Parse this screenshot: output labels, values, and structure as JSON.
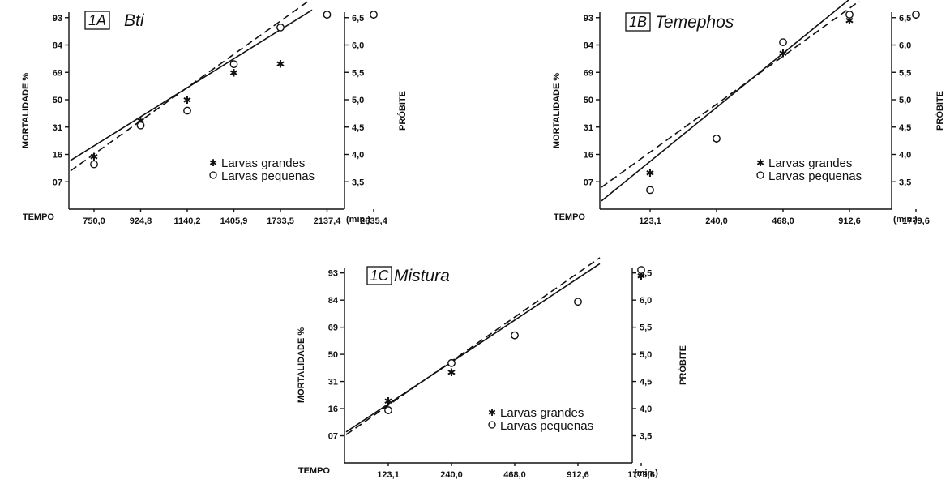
{
  "colors": {
    "ink": "#111111",
    "background": "#ffffff"
  },
  "chart_data": [
    {
      "type": "line",
      "panel": "1A",
      "title": "Bti",
      "xlabel": "TEMPO",
      "x_unit": "(min.)",
      "ylabel": "MORTALIDADE %",
      "ylabel_right": "PRÓBITE",
      "x_ticks": [
        "750,0",
        "924,8",
        "1140,2",
        "1405,9",
        "1733,5",
        "2137,4",
        "2635,4"
      ],
      "y_ticks": [
        "07",
        "16",
        "31",
        "50",
        "69",
        "84",
        "93"
      ],
      "probit_ticks": [
        "3,5",
        "4,0",
        "4,5",
        "5,0",
        "5,5",
        "6,0",
        "6,5"
      ],
      "probit_range": [
        3.0,
        6.6
      ],
      "series": [
        {
          "name": "Larvas grandes",
          "marker": "star",
          "line": "solid",
          "x": [
            "750,0",
            "924,8",
            "1140,2",
            "1405,9",
            "1733,5",
            "2137,4",
            "2635,4"
          ],
          "probit": [
            3.96,
            4.62,
            5.0,
            5.5,
            5.66,
            6.68,
            6.68
          ],
          "fit": [
            3.89,
            6.64
          ]
        },
        {
          "name": "Larvas pequenas",
          "marker": "circle",
          "line": "dashed",
          "x": [
            "750,0",
            "924,8",
            "1140,2",
            "1405,9",
            "1733,5",
            "2137,4",
            "2635,4"
          ],
          "probit": [
            3.82,
            4.53,
            4.8,
            5.65,
            6.32,
            6.68,
            6.68
          ],
          "fit": [
            3.7,
            6.85
          ]
        }
      ],
      "legend": {
        "placement": "lower-right",
        "entries": [
          "Larvas grandes",
          "Larvas pequenas"
        ]
      }
    },
    {
      "type": "line",
      "panel": "1B",
      "title": "Temephos",
      "xlabel": "TEMPO",
      "x_unit": "(min.)",
      "ylabel": "MORTALIDADE %",
      "ylabel_right": "PRÓBITE",
      "x_ticks": [
        "123,1",
        "240,0",
        "468,0",
        "912,6",
        "1779,6"
      ],
      "y_ticks": [
        "07",
        "16",
        "31",
        "50",
        "69",
        "84",
        "93"
      ],
      "probit_ticks": [
        "3,5",
        "4,0",
        "4,5",
        "5,0",
        "5,5",
        "6,0",
        "6,5"
      ],
      "probit_range": [
        3.0,
        6.6
      ],
      "series": [
        {
          "name": "Larvas grandes",
          "marker": "star",
          "line": "solid",
          "x": [
            "123,1",
            "240,0",
            "468,0",
            "912,6",
            "1779,6"
          ],
          "probit": [
            3.67,
            4.29,
            5.85,
            6.45,
            6.67
          ],
          "fit": [
            3.15,
            6.98
          ]
        },
        {
          "name": "Larvas pequenas",
          "marker": "circle",
          "line": "dashed",
          "x": [
            "123,1",
            "240,0",
            "468,0",
            "912,6",
            "1779,6"
          ],
          "probit": [
            3.35,
            4.29,
            6.05,
            6.6,
            6.67
          ],
          "fit": [
            3.4,
            6.8
          ]
        }
      ],
      "legend": {
        "placement": "lower-right",
        "entries": [
          "Larvas grandes",
          "Larvas pequenas"
        ]
      }
    },
    {
      "type": "line",
      "panel": "1C",
      "title": "Mistura",
      "xlabel": "TEMPO",
      "x_unit": "(min.)",
      "ylabel": "MORTALIDADE %",
      "ylabel_right": "PRÓBITE",
      "x_ticks": [
        "123,1",
        "240,0",
        "468,0",
        "912,6",
        "1779,6"
      ],
      "y_ticks": [
        "07",
        "16",
        "31",
        "50",
        "69",
        "84",
        "93"
      ],
      "probit_ticks": [
        "3,5",
        "4,0",
        "4,5",
        "5,0",
        "5,5",
        "6,0",
        "6,5"
      ],
      "probit_range": [
        3.0,
        6.6
      ],
      "series": [
        {
          "name": "Larvas grandes",
          "marker": "star",
          "line": "solid",
          "x": [
            "123,1",
            "240,0",
            "468,0",
            "912,6",
            "1779,6"
          ],
          "probit": [
            4.14,
            4.67,
            5.35,
            5.97,
            6.45
          ],
          "fit": [
            3.57,
            6.67
          ]
        },
        {
          "name": "Larvas pequenas",
          "marker": "circle",
          "line": "dashed",
          "x": [
            "123,1",
            "240,0",
            "468,0",
            "912,6",
            "1779,6"
          ],
          "probit": [
            3.97,
            4.84,
            5.35,
            5.97,
            6.67
          ],
          "fit": [
            3.52,
            6.78
          ]
        }
      ],
      "legend": {
        "placement": "lower-right",
        "entries": [
          "Larvas grandes",
          "Larvas pequenas"
        ]
      }
    }
  ]
}
